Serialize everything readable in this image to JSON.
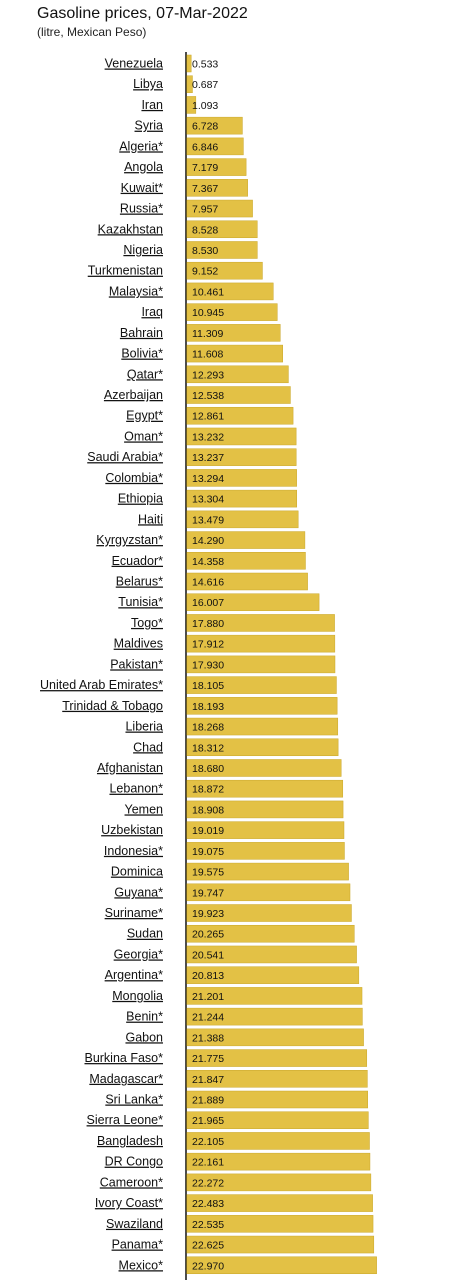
{
  "chart_data": {
    "type": "bar",
    "orientation": "horizontal",
    "title": "Gasoline prices, 07-Mar-2022",
    "subtitle": "(litre, Mexican Peso)",
    "bar_color": "#e3c145",
    "categories": [
      "Venezuela",
      "Libya",
      "Iran",
      "Syria",
      "Algeria*",
      "Angola",
      "Kuwait*",
      "Russia*",
      "Kazakhstan",
      "Nigeria",
      "Turkmenistan",
      "Malaysia*",
      "Iraq",
      "Bahrain",
      "Bolivia*",
      "Qatar*",
      "Azerbaijan",
      "Egypt*",
      "Oman*",
      "Saudi Arabia*",
      "Colombia*",
      "Ethiopia",
      "Haiti",
      "Kyrgyzstan*",
      "Ecuador*",
      "Belarus*",
      "Tunisia*",
      "Togo*",
      "Maldives",
      "Pakistan*",
      "United Arab Emirates*",
      "Trinidad & Tobago",
      "Liberia",
      "Chad",
      "Afghanistan",
      "Lebanon*",
      "Yemen",
      "Uzbekistan",
      "Indonesia*",
      "Dominica",
      "Guyana*",
      "Suriname*",
      "Sudan",
      "Georgia*",
      "Argentina*",
      "Mongolia",
      "Benin*",
      "Gabon",
      "Burkina Faso*",
      "Madagascar*",
      "Sri Lanka*",
      "Sierra Leone*",
      "Bangladesh",
      "DR Congo",
      "Cameroon*",
      "Ivory Coast*",
      "Swaziland",
      "Panama*",
      "Mexico*"
    ],
    "values": [
      0.533,
      0.687,
      1.093,
      6.728,
      6.846,
      7.179,
      7.367,
      7.957,
      8.528,
      8.53,
      9.152,
      10.461,
      10.945,
      11.309,
      11.608,
      12.293,
      12.538,
      12.861,
      13.232,
      13.237,
      13.294,
      13.304,
      13.479,
      14.29,
      14.358,
      14.616,
      16.007,
      17.88,
      17.912,
      17.93,
      18.105,
      18.193,
      18.268,
      18.312,
      18.68,
      18.872,
      18.908,
      19.019,
      19.075,
      19.575,
      19.747,
      19.923,
      20.265,
      20.541,
      20.813,
      21.201,
      21.244,
      21.388,
      21.775,
      21.847,
      21.889,
      21.965,
      22.105,
      22.161,
      22.272,
      22.483,
      22.535,
      22.625,
      22.97
    ],
    "value_labels": [
      "0.533",
      "0.687",
      "1.093",
      "6.728",
      "6.846",
      "7.179",
      "7.367",
      "7.957",
      "8.528",
      "8.530",
      "9.152",
      "10.461",
      "10.945",
      "11.309",
      "11.608",
      "12.293",
      "12.538",
      "12.861",
      "13.232",
      "13.237",
      "13.294",
      "13.304",
      "13.479",
      "14.290",
      "14.358",
      "14.616",
      "16.007",
      "17.880",
      "17.912",
      "17.930",
      "18.105",
      "18.193",
      "18.268",
      "18.312",
      "18.680",
      "18.872",
      "18.908",
      "19.019",
      "19.075",
      "19.575",
      "19.747",
      "19.923",
      "20.265",
      "20.541",
      "20.813",
      "21.201",
      "21.244",
      "21.388",
      "21.775",
      "21.847",
      "21.889",
      "21.965",
      "22.105",
      "22.161",
      "22.272",
      "22.483",
      "22.535",
      "22.625",
      "22.970"
    ],
    "xlim": [
      0,
      23.5
    ],
    "grid": false,
    "legend": "none"
  }
}
